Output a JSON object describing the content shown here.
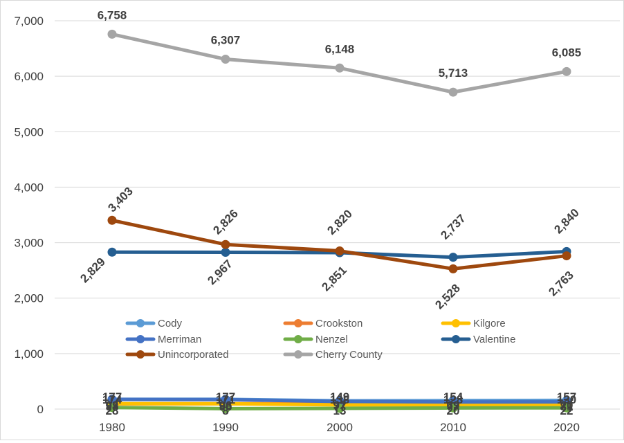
{
  "chart_data": {
    "type": "line",
    "title": "",
    "xlabel": "",
    "ylabel": "",
    "categories": [
      "1980",
      "1990",
      "2000",
      "2010",
      "2020"
    ],
    "ylim": [
      0,
      7000
    ],
    "yticks": [
      0,
      1000,
      2000,
      3000,
      4000,
      5000,
      6000,
      7000
    ],
    "ytick_labels": [
      "0",
      "1,000",
      "2,000",
      "3,000",
      "4,000",
      "5,000",
      "6,000",
      "7,000"
    ],
    "grid": true,
    "legend_position": "inside-lower-middle",
    "series": [
      {
        "name": "Cody",
        "color": "#5B9BD5",
        "values": [
          177,
          177,
          149,
          154,
          157
        ],
        "labels": [
          "177",
          "177",
          "149",
          "154",
          "157"
        ]
      },
      {
        "name": "Crookston",
        "color": "#ED7D31",
        "values": [
          93,
          96,
          97,
          69,
          70
        ],
        "labels": [
          "93",
          "96",
          "97",
          "69",
          "70"
        ]
      },
      {
        "name": "Kilgore",
        "color": "#FFC000",
        "values": [
          98,
          96,
          77,
          77,
          81
        ],
        "labels": [
          "98",
          "96",
          "77",
          "77",
          "81"
        ]
      },
      {
        "name": "Merriman",
        "color": "#4472C4",
        "values": [
          174,
          171,
          138,
          128,
          130
        ],
        "labels": [
          "174",
          "171",
          "138",
          "128",
          "130"
        ]
      },
      {
        "name": "Nenzel",
        "color": "#70AD47",
        "values": [
          28,
          8,
          13,
          20,
          22
        ],
        "labels": [
          "28",
          "8",
          "13",
          "20",
          "22"
        ]
      },
      {
        "name": "Valentine",
        "color": "#255E91",
        "values": [
          2829,
          2826,
          2820,
          2737,
          2840
        ],
        "labels": [
          "2,829",
          "2,826",
          "2,820",
          "2,737",
          "2,840"
        ]
      },
      {
        "name": "Unincorporated",
        "color": "#9E480E",
        "values": [
          3403,
          2967,
          2851,
          2528,
          2763
        ],
        "labels": [
          "3,403",
          "2,967",
          "2,851",
          "2,528",
          "2,763"
        ]
      },
      {
        "name": "Cherry County",
        "color": "#A5A5A5",
        "values": [
          6758,
          6307,
          6148,
          5713,
          6085
        ],
        "labels": [
          "6,758",
          "6,307",
          "6,148",
          "5,713",
          "6,085"
        ]
      }
    ]
  }
}
